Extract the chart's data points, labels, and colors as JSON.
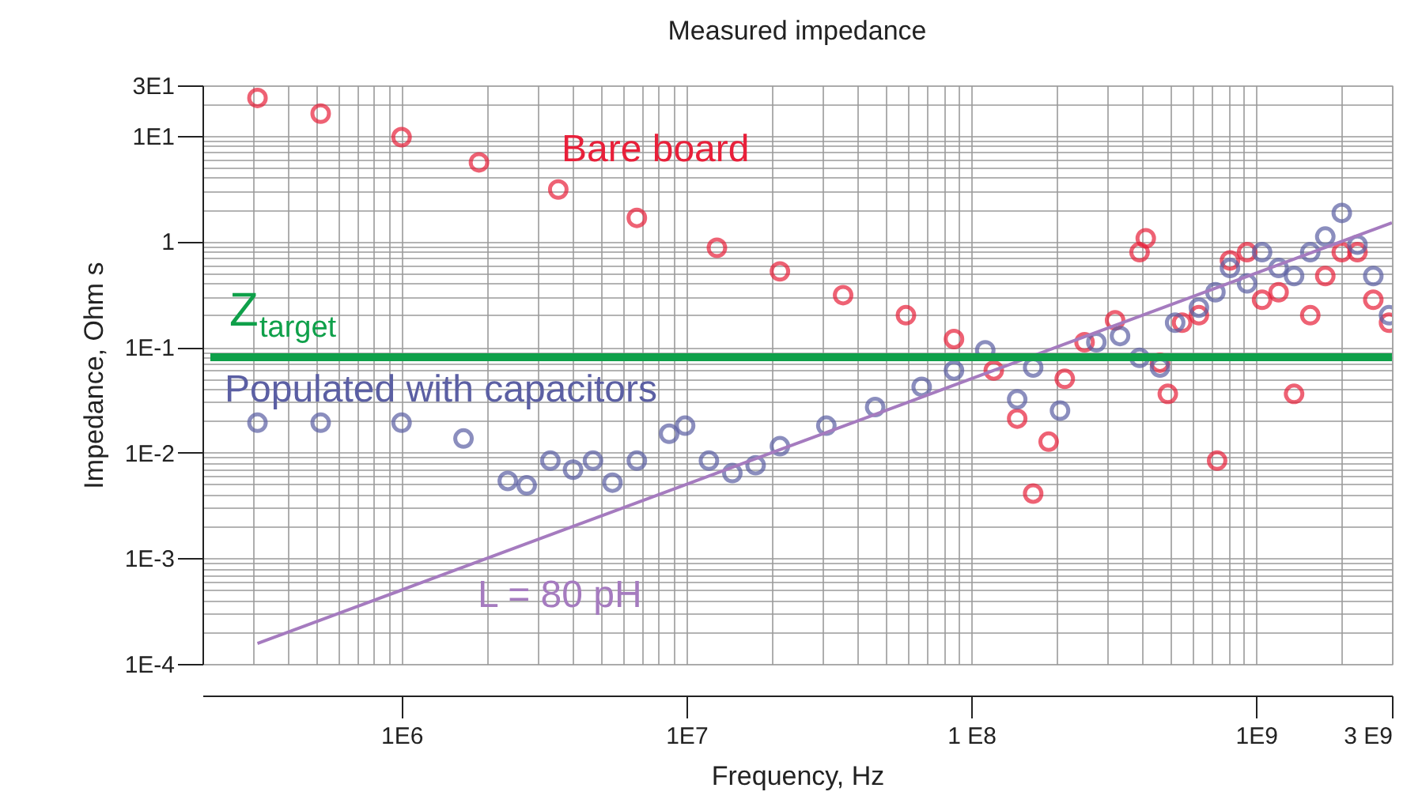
{
  "chart_data": {
    "type": "scatter",
    "title": "Measured impedance",
    "xlabel": "Frequency, Hz",
    "ylabel": "Impedance, Ohm s",
    "log": "xy",
    "grid": true,
    "marker": "circle",
    "xlim": [
      200000,
      3000000000
    ],
    "ylim": [
      0.0001,
      30
    ],
    "xticks": [
      {
        "value": 200000,
        "label": null
      },
      {
        "value": 300000,
        "label": null
      },
      {
        "value": 400000,
        "label": null
      },
      {
        "value": 500000,
        "label": null
      },
      {
        "value": 600000,
        "label": null
      },
      {
        "value": 700000,
        "label": null
      },
      {
        "value": 800000,
        "label": null
      },
      {
        "value": 900000,
        "label": null
      },
      {
        "value": 1000000,
        "label": "1E6"
      },
      {
        "value": 2000000,
        "label": null
      },
      {
        "value": 3000000,
        "label": null
      },
      {
        "value": 4000000,
        "label": null
      },
      {
        "value": 5000000,
        "label": null
      },
      {
        "value": 6000000,
        "label": null
      },
      {
        "value": 7000000,
        "label": null
      },
      {
        "value": 8000000,
        "label": null
      },
      {
        "value": 9000000,
        "label": null
      },
      {
        "value": 10000000,
        "label": "1E7"
      },
      {
        "value": 20000000,
        "label": null
      },
      {
        "value": 30000000,
        "label": null
      },
      {
        "value": 40000000,
        "label": null
      },
      {
        "value": 50000000,
        "label": null
      },
      {
        "value": 60000000,
        "label": null
      },
      {
        "value": 70000000,
        "label": null
      },
      {
        "value": 80000000,
        "label": null
      },
      {
        "value": 90000000,
        "label": null
      },
      {
        "value": 100000000,
        "label": "1 E8"
      },
      {
        "value": 200000000,
        "label": null
      },
      {
        "value": 300000000,
        "label": null
      },
      {
        "value": 400000000,
        "label": null
      },
      {
        "value": 500000000,
        "label": null
      },
      {
        "value": 600000000,
        "label": null
      },
      {
        "value": 700000000,
        "label": null
      },
      {
        "value": 800000000,
        "label": null
      },
      {
        "value": 900000000,
        "label": null
      },
      {
        "value": 1000000000,
        "label": "1E9"
      },
      {
        "value": 2000000000,
        "label": null
      },
      {
        "value": 3000000000,
        "label": "3 E9"
      }
    ],
    "yticks": [
      {
        "value": 0.0001,
        "label": "1E-4"
      },
      {
        "value": 0.0002,
        "label": null
      },
      {
        "value": 0.0003,
        "label": null
      },
      {
        "value": 0.0004,
        "label": null
      },
      {
        "value": 0.0005,
        "label": null
      },
      {
        "value": 0.0006,
        "label": null
      },
      {
        "value": 0.0007,
        "label": null
      },
      {
        "value": 0.0008,
        "label": null
      },
      {
        "value": 0.0009,
        "label": null
      },
      {
        "value": 0.001,
        "label": "1E-3"
      },
      {
        "value": 0.002,
        "label": null
      },
      {
        "value": 0.003,
        "label": null
      },
      {
        "value": 0.004,
        "label": null
      },
      {
        "value": 0.005,
        "label": null
      },
      {
        "value": 0.006,
        "label": null
      },
      {
        "value": 0.007,
        "label": null
      },
      {
        "value": 0.008,
        "label": null
      },
      {
        "value": 0.009,
        "label": null
      },
      {
        "value": 0.01,
        "label": "1E-2"
      },
      {
        "value": 0.02,
        "label": null
      },
      {
        "value": 0.03,
        "label": null
      },
      {
        "value": 0.04,
        "label": null
      },
      {
        "value": 0.05,
        "label": null
      },
      {
        "value": 0.06,
        "label": null
      },
      {
        "value": 0.07,
        "label": null
      },
      {
        "value": 0.08,
        "label": null
      },
      {
        "value": 0.09,
        "label": null
      },
      {
        "value": 0.1,
        "label": "1E-1"
      },
      {
        "value": 0.2,
        "label": null
      },
      {
        "value": 0.3,
        "label": null
      },
      {
        "value": 0.4,
        "label": null
      },
      {
        "value": 0.5,
        "label": null
      },
      {
        "value": 0.6,
        "label": null
      },
      {
        "value": 0.7,
        "label": null
      },
      {
        "value": 0.8,
        "label": null
      },
      {
        "value": 0.9,
        "label": null
      },
      1,
      {
        "value": 2,
        "label": null
      },
      {
        "value": 3,
        "label": null
      },
      {
        "value": 4,
        "label": null
      },
      {
        "value": 5,
        "label": null
      },
      {
        "value": 6,
        "label": null
      },
      {
        "value": 7,
        "label": null
      },
      {
        "value": 8,
        "label": null
      },
      {
        "value": 9,
        "label": null
      },
      {
        "value": 10,
        "label": "1E1"
      },
      {
        "value": 20,
        "label": null
      },
      {
        "value": 30,
        "label": "3E1"
      }
    ],
    "ref_lines": [
      {
        "axis": "y",
        "value": 0.08,
        "label": "Z$_{target}$",
        "color": "#0fa04a"
      }
    ],
    "series": [
      {
        "name": "Bare board",
        "color": "#e8203a",
        "x": [
          312000,
          520000,
          1000000,
          1870000,
          3550000,
          6700000,
          12800000,
          21300000,
          35500000,
          59000000,
          87000000,
          120000000,
          145000000,
          165000000,
          187000000,
          213000000,
          250000000,
          320000000,
          390000000,
          410000000,
          460000000,
          490000000,
          550000000,
          630000000,
          730000000,
          810000000,
          930000000,
          1050000000,
          1200000000,
          1360000000,
          1550000000,
          1750000000,
          2000000000,
          2270000000,
          2580000000,
          2930000000
        ],
        "values": [
          22.8,
          16.2,
          9.7,
          5.6,
          3.1,
          1.67,
          0.87,
          0.52,
          0.31,
          0.2,
          0.119,
          0.06,
          0.021,
          0.0041,
          0.0127,
          0.05,
          0.111,
          0.179,
          0.79,
          1.07,
          0.071,
          0.036,
          0.17,
          0.2,
          0.0084,
          0.66,
          0.79,
          0.28,
          0.33,
          0.036,
          0.2,
          0.47,
          0.79,
          0.79,
          0.28,
          0.17
        ]
      },
      {
        "name": "Populated with capacitors",
        "color": "#5b5fa3",
        "x": [
          312000,
          520000,
          1000000,
          1650000,
          2360000,
          2750000,
          3330000,
          4000000,
          4700000,
          5500000,
          6700000,
          8700000,
          9900000,
          12000000,
          14500000,
          17500000,
          21300000,
          31000000,
          46000000,
          67000000,
          87000000,
          112000000,
          145000000,
          165000000,
          205000000,
          275000000,
          333000000,
          390000000,
          460000000,
          520000000,
          630000000,
          720000000,
          810000000,
          930000000,
          1050000000,
          1200000000,
          1360000000,
          1550000000,
          1750000000,
          2000000000,
          2270000000,
          2580000000,
          2930000000
        ],
        "values": [
          0.0192,
          0.0192,
          0.0192,
          0.0136,
          0.0054,
          0.0049,
          0.0084,
          0.0069,
          0.0084,
          0.0052,
          0.0084,
          0.0151,
          0.018,
          0.0084,
          0.0064,
          0.0076,
          0.0115,
          0.018,
          0.027,
          0.042,
          0.06,
          0.093,
          0.032,
          0.064,
          0.025,
          0.111,
          0.127,
          0.079,
          0.064,
          0.17,
          0.236,
          0.33,
          0.56,
          0.4,
          0.79,
          0.56,
          0.47,
          0.79,
          1.11,
          1.86,
          0.93,
          0.47,
          0.2
        ]
      },
      {
        "name": "L = 80 pH",
        "type": "line",
        "marker": "none",
        "color": "#a57bbf",
        "x": [
          312000,
          3000000000
        ],
        "values": [
          0.000156,
          1.5
        ]
      }
    ]
  }
}
